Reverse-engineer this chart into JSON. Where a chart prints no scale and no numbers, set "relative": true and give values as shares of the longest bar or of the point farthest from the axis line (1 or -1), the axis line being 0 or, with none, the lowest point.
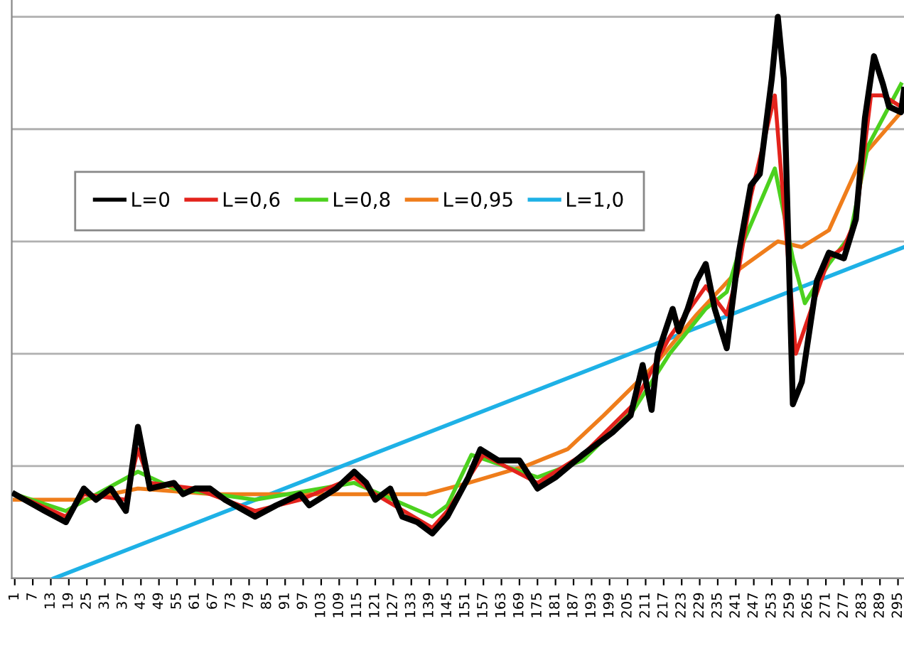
{
  "chart_data": {
    "type": "line",
    "relative": true,
    "grid": "y",
    "legend": "top left",
    "marker": "none",
    "line_style": "solid",
    "xlim": [
      0,
      297
    ],
    "xticks": [
      1,
      7,
      13,
      19,
      25,
      31,
      37,
      43,
      49,
      55,
      61,
      67,
      73,
      79,
      85,
      91,
      97,
      103,
      109,
      115,
      121,
      127,
      133,
      139,
      145,
      151,
      157,
      163,
      169,
      175,
      181,
      187,
      193,
      199,
      205,
      211,
      217,
      223,
      229,
      235,
      241,
      247,
      253,
      259,
      265,
      271,
      277,
      283,
      289,
      295
    ],
    "series": [
      {
        "name": "L=0",
        "color": "#000000",
        "x": [
          1,
          11,
          18,
          24,
          28,
          33,
          38,
          42,
          46,
          54,
          57,
          61,
          66,
          71,
          81,
          88,
          96,
          99,
          108,
          114,
          118,
          121,
          126,
          130,
          135,
          140,
          145,
          152,
          156,
          162,
          169,
          175,
          181,
          190,
          200,
          206,
          210,
          213,
          215,
          220,
          222,
          225,
          228,
          231,
          234,
          238,
          242,
          246,
          249,
          253,
          255,
          257,
          260,
          263,
          268,
          272,
          277,
          281,
          284,
          287,
          290,
          292,
          296,
          297
        ],
        "values": [
          0.15,
          0.12,
          0.1,
          0.16,
          0.14,
          0.16,
          0.12,
          0.27,
          0.16,
          0.17,
          0.15,
          0.16,
          0.16,
          0.14,
          0.11,
          0.13,
          0.15,
          0.13,
          0.16,
          0.19,
          0.17,
          0.14,
          0.16,
          0.11,
          0.1,
          0.08,
          0.11,
          0.18,
          0.23,
          0.21,
          0.21,
          0.16,
          0.18,
          0.22,
          0.26,
          0.29,
          0.38,
          0.3,
          0.4,
          0.48,
          0.44,
          0.48,
          0.53,
          0.56,
          0.48,
          0.41,
          0.58,
          0.7,
          0.72,
          0.89,
          1.0,
          0.89,
          0.31,
          0.35,
          0.53,
          0.58,
          0.57,
          0.64,
          0.82,
          0.93,
          0.88,
          0.84,
          0.83,
          0.87
        ]
      },
      {
        "name": "L=0,6",
        "color": "#e3231c",
        "x": [
          1,
          18,
          24,
          38,
          42,
          46,
          61,
          81,
          96,
          114,
          121,
          140,
          145,
          157,
          175,
          190,
          207,
          219,
          231,
          238,
          242,
          246,
          254,
          261,
          272,
          277,
          281,
          286,
          290,
          296,
          297
        ],
        "values": [
          0.15,
          0.11,
          0.15,
          0.14,
          0.23,
          0.17,
          0.16,
          0.12,
          0.14,
          0.18,
          0.15,
          0.09,
          0.12,
          0.22,
          0.17,
          0.22,
          0.31,
          0.43,
          0.52,
          0.47,
          0.55,
          0.68,
          0.86,
          0.4,
          0.57,
          0.59,
          0.64,
          0.86,
          0.86,
          0.84,
          0.86
        ]
      },
      {
        "name": "L=0,8",
        "color": "#4cd11e",
        "x": [
          1,
          18,
          42,
          54,
          81,
          114,
          140,
          145,
          153,
          175,
          190,
          207,
          219,
          231,
          238,
          242,
          254,
          260,
          264,
          272,
          279,
          285,
          296
        ],
        "values": [
          0.15,
          0.12,
          0.19,
          0.16,
          0.14,
          0.17,
          0.11,
          0.13,
          0.22,
          0.18,
          0.21,
          0.3,
          0.4,
          0.48,
          0.51,
          0.58,
          0.73,
          0.57,
          0.49,
          0.56,
          0.61,
          0.77,
          0.88
        ]
      },
      {
        "name": "L=0,95",
        "color": "#ef7d1b",
        "x": [
          1,
          24,
          42,
          67,
          91,
          114,
          138,
          152,
          171,
          185,
          197,
          214,
          228,
          242,
          255,
          263,
          272,
          283,
          296,
          297
        ],
        "values": [
          0.14,
          0.14,
          0.16,
          0.15,
          0.15,
          0.15,
          0.15,
          0.17,
          0.2,
          0.23,
          0.29,
          0.38,
          0.47,
          0.55,
          0.6,
          0.59,
          0.62,
          0.75,
          0.83,
          0.87
        ]
      },
      {
        "name": "L=1,0",
        "color": "#1eb1e6",
        "x": [
          14,
          297
        ],
        "values": [
          0.0,
          0.59
        ]
      }
    ]
  }
}
